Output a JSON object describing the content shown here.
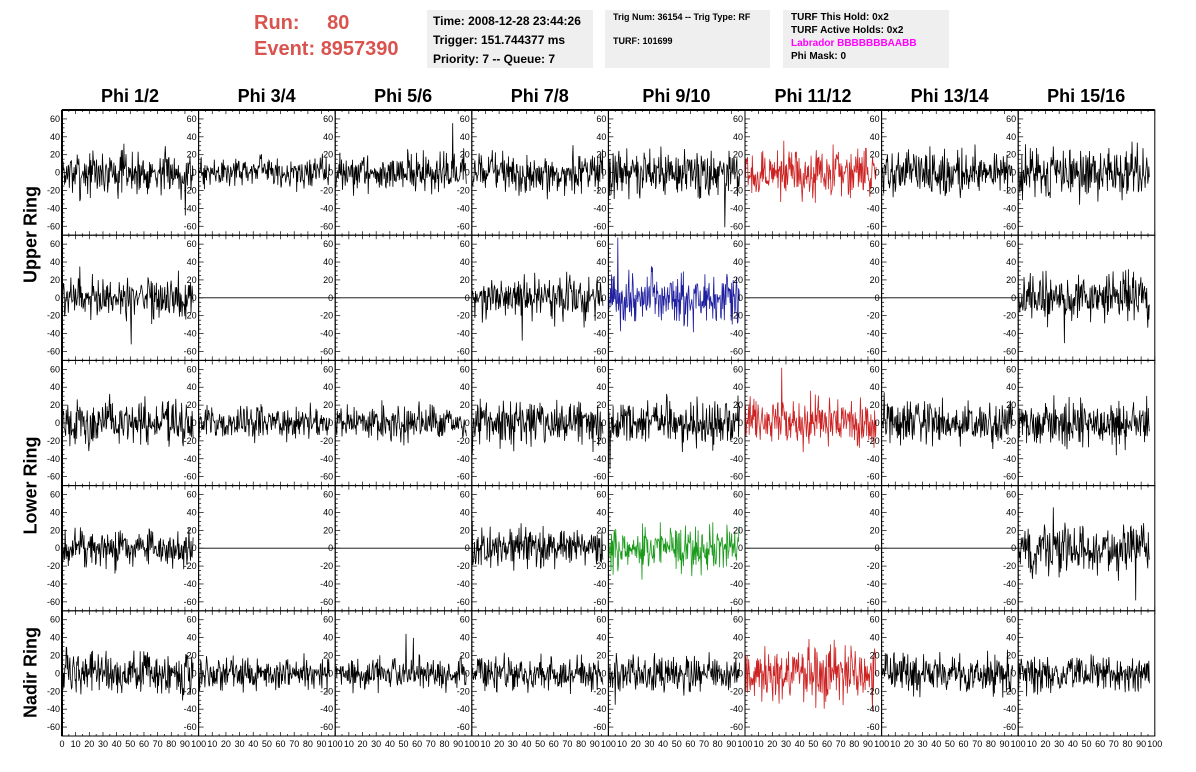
{
  "header": {
    "run_label": "Run:",
    "run_value": "80",
    "event_label": "Event:",
    "event_value": "8957390",
    "time": "Time: 2008-12-28 23:44:26",
    "trigger": "Trigger: 151.744377 ms",
    "priority": "Priority: 7 -- Queue: 7",
    "trig_num": "Trig Num: 36154 -- Trig Type: RF",
    "turf": "TURF: 101699",
    "turf_this_hold": "TURF This Hold: 0x2",
    "turf_active_holds": "TURF Active Holds: 0x2",
    "labrador": "Labrador BBBBBBBAABB",
    "phi_mask": "Phi Mask: 0"
  },
  "colors": {
    "run_text": "#d9534f",
    "labrador": "#ff00ff",
    "trace_default": "#000000",
    "trace_red": "#cc2222",
    "trace_blue": "#1f1fa0",
    "trace_green": "#1a9a1a"
  },
  "chart_data": {
    "type": "line",
    "columns": [
      "Phi 1/2",
      "Phi 3/4",
      "Phi 5/6",
      "Phi 7/8",
      "Phi 9/10",
      "Phi 11/12",
      "Phi 13/14",
      "Phi 15/16"
    ],
    "rows": [
      "Upper Ring",
      "Lower Ring",
      "Nadir Ring"
    ],
    "panel_rows": 5,
    "xlim": [
      0,
      100
    ],
    "ylim": [
      -70,
      70
    ],
    "x_tick_labels": [
      "0",
      "10",
      "20",
      "30",
      "40",
      "50",
      "60",
      "70",
      "80",
      "90",
      "100"
    ],
    "y_tick_labels": [
      "60",
      "40",
      "20",
      "0",
      "-20",
      "-40",
      "-60"
    ],
    "panels": [
      [
        {
          "color": "black",
          "amp": 15,
          "flat": false
        },
        {
          "color": "black",
          "amp": 10,
          "flat": false
        },
        {
          "color": "black",
          "amp": 13,
          "flat": false
        },
        {
          "color": "black",
          "amp": 14,
          "flat": false
        },
        {
          "color": "black",
          "amp": 16,
          "flat": false
        },
        {
          "color": "red",
          "amp": 16,
          "flat": false
        },
        {
          "color": "black",
          "amp": 15,
          "flat": false
        },
        {
          "color": "black",
          "amp": 17,
          "flat": false
        }
      ],
      [
        {
          "color": "black",
          "amp": 14,
          "flat": false
        },
        {
          "color": "black",
          "amp": 0,
          "flat": true
        },
        {
          "color": "black",
          "amp": 0,
          "flat": true
        },
        {
          "color": "black",
          "amp": 14,
          "flat": false
        },
        {
          "color": "blue",
          "amp": 18,
          "flat": false
        },
        {
          "color": "black",
          "amp": 0,
          "flat": true
        },
        {
          "color": "black",
          "amp": 0,
          "flat": true
        },
        {
          "color": "black",
          "amp": 17,
          "flat": false
        }
      ],
      [
        {
          "color": "black",
          "amp": 15,
          "flat": false
        },
        {
          "color": "black",
          "amp": 11,
          "flat": false
        },
        {
          "color": "black",
          "amp": 12,
          "flat": false
        },
        {
          "color": "black",
          "amp": 15,
          "flat": false
        },
        {
          "color": "black",
          "amp": 15,
          "flat": false
        },
        {
          "color": "red",
          "amp": 17,
          "flat": false
        },
        {
          "color": "black",
          "amp": 16,
          "flat": false
        },
        {
          "color": "black",
          "amp": 16,
          "flat": false
        }
      ],
      [
        {
          "color": "black",
          "amp": 13,
          "flat": false
        },
        {
          "color": "black",
          "amp": 0,
          "flat": true
        },
        {
          "color": "black",
          "amp": 0,
          "flat": true
        },
        {
          "color": "black",
          "amp": 14,
          "flat": false
        },
        {
          "color": "green",
          "amp": 15,
          "flat": false
        },
        {
          "color": "black",
          "amp": 0,
          "flat": true
        },
        {
          "color": "black",
          "amp": 0,
          "flat": true
        },
        {
          "color": "black",
          "amp": 18,
          "flat": false
        }
      ],
      [
        {
          "color": "black",
          "amp": 15,
          "flat": false
        },
        {
          "color": "black",
          "amp": 11,
          "flat": false
        },
        {
          "color": "black",
          "amp": 11,
          "flat": false
        },
        {
          "color": "black",
          "amp": 12,
          "flat": false
        },
        {
          "color": "black",
          "amp": 12,
          "flat": false
        },
        {
          "color": "red",
          "amp": 18,
          "flat": false
        },
        {
          "color": "black",
          "amp": 14,
          "flat": false
        },
        {
          "color": "black",
          "amp": 13,
          "flat": false
        }
      ]
    ]
  }
}
